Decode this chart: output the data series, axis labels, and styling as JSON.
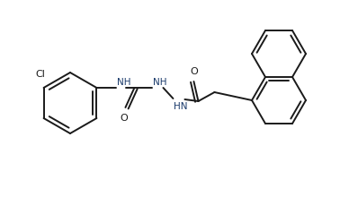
{
  "background_color": "#ffffff",
  "line_color": "#1a1a1a",
  "text_color": "#1a3a6b",
  "line_width": 1.4,
  "font_size": 7.5,
  "figsize": [
    3.98,
    2.2
  ],
  "dpi": 100,
  "ylim": [
    0,
    220
  ],
  "xlim": [
    0,
    398
  ]
}
